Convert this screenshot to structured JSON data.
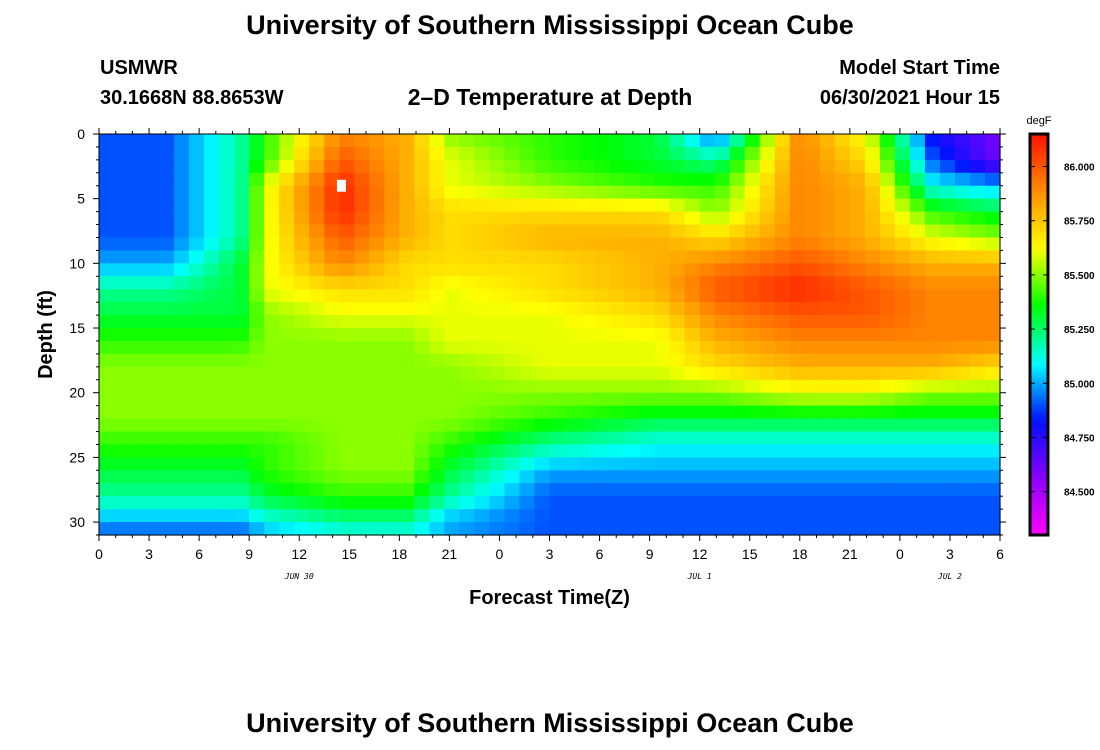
{
  "header": {
    "title": "University of Southern Mississippi Ocean Cube",
    "station": "USMWR",
    "location": "30.1668N  88.8653W",
    "subtitle": "2–D Temperature at Depth",
    "start_label": "Model Start Time",
    "start_value": "06/30/2021 Hour 15"
  },
  "footer": {
    "title": "University of Southern Mississippi Ocean Cube"
  },
  "chart_data": {
    "type": "heatmap",
    "xlabel": "Forecast Time(Z)",
    "ylabel": "Depth (ft)",
    "x_range": [
      0,
      54
    ],
    "y_range": [
      0,
      31
    ],
    "y_inverted": true,
    "x_ticks": [
      0,
      3,
      6,
      9,
      12,
      15,
      18,
      21,
      24,
      27,
      30,
      33,
      36,
      39,
      42,
      45,
      48,
      51,
      54
    ],
    "x_tick_labels": [
      "0",
      "3",
      "6",
      "9",
      "12",
      "15",
      "18",
      "21",
      "0",
      "3",
      "6",
      "9",
      "12",
      "15",
      "18",
      "21",
      "0",
      "3",
      "6"
    ],
    "y_ticks": [
      0,
      5,
      10,
      15,
      20,
      25,
      30
    ],
    "y_tick_labels": [
      "0",
      "5",
      "10",
      "15",
      "20",
      "25",
      "30"
    ],
    "date_labels": [
      {
        "x": 12,
        "text": "JUN 30"
      },
      {
        "x": 36,
        "text": "JUL 1"
      },
      {
        "x": 51,
        "text": "JUL 2"
      }
    ],
    "colorbar": {
      "unit": "degF",
      "min": 84.3,
      "max": 86.15,
      "tick_values": [
        84.5,
        84.75,
        85.0,
        85.25,
        85.5,
        85.75,
        86.0
      ],
      "tick_labels": [
        "84.500",
        "84.750",
        "85.000",
        "85.250",
        "85.500",
        "85.750",
        "86.000"
      ],
      "colors": [
        "#ff00ff",
        "#8a00ff",
        "#0010ff",
        "#00ffff",
        "#00ff00",
        "#ffff00",
        "#ff8c00",
        "#ff1000"
      ]
    },
    "marker": {
      "x": 14.5,
      "y": 4.0
    },
    "grid_times": [
      0,
      4,
      8.5,
      10,
      14.5,
      18.5,
      21,
      27,
      33.5,
      37,
      42,
      46,
      50,
      54
    ],
    "grid_depths": [
      0,
      2,
      4,
      6,
      8,
      10,
      12,
      14,
      16,
      18,
      20,
      22,
      24,
      26,
      28,
      30,
      31
    ],
    "grid_values": [
      [
        84.9,
        84.9,
        85.2,
        85.4,
        85.9,
        85.8,
        85.5,
        85.4,
        85.3,
        84.9,
        85.9,
        85.6,
        84.8,
        84.6
      ],
      [
        84.9,
        84.9,
        85.2,
        85.4,
        86.0,
        85.8,
        85.6,
        85.4,
        85.3,
        85.2,
        85.9,
        85.7,
        84.9,
        84.6
      ],
      [
        84.9,
        84.9,
        85.2,
        85.6,
        86.1,
        85.8,
        85.6,
        85.5,
        85.4,
        85.4,
        85.9,
        85.8,
        85.1,
        85.0
      ],
      [
        84.9,
        84.9,
        85.2,
        85.6,
        86.1,
        85.8,
        85.7,
        85.7,
        85.7,
        85.5,
        85.9,
        85.8,
        85.4,
        85.3
      ],
      [
        84.9,
        84.9,
        85.2,
        85.6,
        86.0,
        85.8,
        85.7,
        85.8,
        85.8,
        85.7,
        85.9,
        85.8,
        85.6,
        85.5
      ],
      [
        85.0,
        85.0,
        85.3,
        85.6,
        85.9,
        85.7,
        85.7,
        85.7,
        85.8,
        85.9,
        86.0,
        85.9,
        85.8,
        85.8
      ],
      [
        85.2,
        85.2,
        85.3,
        85.6,
        85.7,
        85.7,
        85.6,
        85.7,
        85.8,
        86.0,
        86.1,
        86.0,
        85.9,
        85.9
      ],
      [
        85.3,
        85.3,
        85.3,
        85.5,
        85.6,
        85.6,
        85.6,
        85.6,
        85.7,
        85.9,
        86.0,
        86.0,
        85.9,
        85.9
      ],
      [
        85.4,
        85.4,
        85.4,
        85.5,
        85.5,
        85.5,
        85.6,
        85.6,
        85.6,
        85.8,
        85.9,
        85.9,
        85.9,
        85.9
      ],
      [
        85.5,
        85.5,
        85.5,
        85.5,
        85.5,
        85.5,
        85.5,
        85.6,
        85.6,
        85.7,
        85.8,
        85.8,
        85.8,
        85.7
      ],
      [
        85.5,
        85.5,
        85.5,
        85.5,
        85.5,
        85.5,
        85.5,
        85.5,
        85.5,
        85.5,
        85.6,
        85.6,
        85.5,
        85.5
      ],
      [
        85.5,
        85.5,
        85.5,
        85.5,
        85.5,
        85.5,
        85.5,
        85.4,
        85.3,
        85.3,
        85.3,
        85.3,
        85.3,
        85.3
      ],
      [
        85.4,
        85.4,
        85.4,
        85.4,
        85.5,
        85.5,
        85.4,
        85.2,
        85.1,
        85.1,
        85.1,
        85.1,
        85.1,
        85.1
      ],
      [
        85.3,
        85.3,
        85.3,
        85.4,
        85.5,
        85.5,
        85.3,
        85.0,
        85.0,
        85.0,
        85.0,
        85.0,
        85.0,
        85.0
      ],
      [
        85.2,
        85.2,
        85.2,
        85.3,
        85.4,
        85.4,
        85.2,
        84.9,
        84.9,
        84.9,
        84.9,
        84.9,
        84.9,
        84.9
      ],
      [
        85.0,
        85.0,
        85.0,
        85.1,
        85.2,
        85.2,
        85.0,
        84.9,
        84.9,
        84.9,
        84.9,
        84.9,
        84.9,
        84.9
      ],
      [
        84.9,
        84.9,
        84.9,
        85.0,
        85.1,
        85.1,
        85.0,
        84.9,
        84.9,
        84.9,
        84.9,
        84.9,
        84.9,
        84.9
      ]
    ]
  }
}
